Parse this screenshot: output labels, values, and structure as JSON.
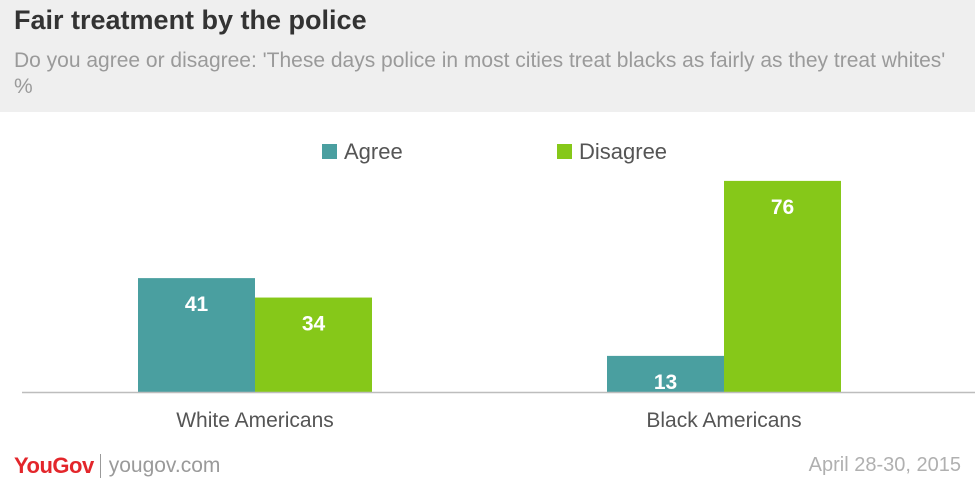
{
  "header": {
    "title": "Fair treatment by the police",
    "subtitle": "Do you agree or disagree: 'These days police in most cities treat blacks as fairly as they treat whites' %"
  },
  "footer": {
    "logo": "YouGov",
    "site": "yougov.com",
    "date": "April 28-30, 2015"
  },
  "colors": {
    "agree": "#4a9fa0",
    "disagree": "#86c819",
    "axis": "#bdbdbd",
    "label": "#555555",
    "value_text": "#ffffff",
    "logo": "#e3262b"
  },
  "chart_data": {
    "type": "bar",
    "title": "Fair treatment by the police",
    "subtitle": "Do you agree or disagree: 'These days police in most cities treat blacks as fairly as they treat whites' %",
    "categories": [
      "White Americans",
      "Black Americans"
    ],
    "series": [
      {
        "name": "Agree",
        "values": [
          41,
          13
        ]
      },
      {
        "name": "Disagree",
        "values": [
          34,
          76
        ]
      }
    ],
    "ylim": [
      0,
      90
    ],
    "grid": false,
    "legend": "top-center",
    "data_labels": true
  }
}
